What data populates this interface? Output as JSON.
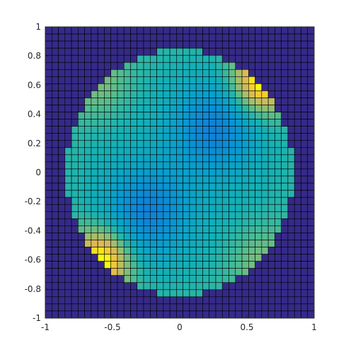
{
  "chart_data": {
    "type": "heatmap",
    "title": "",
    "xlabel": "",
    "ylabel": "",
    "xlim": [
      -1,
      1
    ],
    "ylim": [
      -1,
      1
    ],
    "grid_size": [
      41,
      41
    ],
    "cell_edges": true,
    "colormap": "parula",
    "color_range": [
      0,
      1
    ],
    "outside_value": 0,
    "xticks": [
      -1,
      -0.5,
      0,
      0.5,
      1
    ],
    "xtick_labels": [
      "-1",
      "-0.5",
      "0",
      "0.5",
      "1"
    ],
    "yticks": [
      1,
      0.8,
      0.6,
      0.4,
      0.2,
      0,
      -0.2,
      -0.4,
      -0.6,
      -0.8,
      -1
    ],
    "ytick_labels": [
      "1",
      "0.8",
      "0.6",
      "0.4",
      "0.2",
      "0",
      "-0.2",
      "-0.4",
      "-0.6",
      "-0.8",
      "-1"
    ],
    "disk": {
      "radius": 0.85,
      "dip_centers": [
        [
          -0.24,
          -0.27
        ],
        [
          0.26,
          0.31
        ]
      ],
      "dip_depth": 0.27,
      "rim_peaks": [
        [
          -0.58,
          -0.6
        ],
        [
          0.6,
          0.62
        ]
      ]
    },
    "colors": {
      "outside": "#352a87",
      "edge": "#000000",
      "axis": "#262626"
    }
  }
}
